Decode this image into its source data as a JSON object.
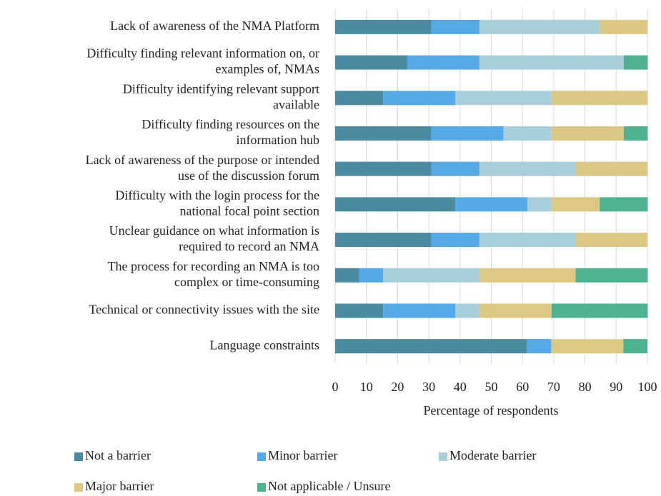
{
  "chart_data": {
    "type": "stacked-bar-horizontal",
    "categories": [
      [
        "Lack of awareness of the NMA Platform"
      ],
      [
        "Difficulty finding relevant information on, or",
        "examples of, NMAs"
      ],
      [
        "Difficulty identifying relevant support",
        "available"
      ],
      [
        "Difficulty finding resources on the",
        "information hub"
      ],
      [
        "Lack of awareness of the purpose or intended",
        "use of the discussion forum"
      ],
      [
        "Difficulty with the login process for the",
        "national focal point section"
      ],
      [
        "Unclear guidance on what information is",
        "required to record an NMA"
      ],
      [
        "The process for recording an NMA is too",
        "complex or time-consuming"
      ],
      [
        "Technical or connectivity issues with the site"
      ],
      [
        "Language constraints"
      ]
    ],
    "series": [
      {
        "name": "Not a barrier",
        "color": "#4b8ba1",
        "values": [
          30.8,
          23.1,
          15.4,
          30.8,
          30.8,
          38.5,
          30.8,
          7.7,
          15.4,
          61.5
        ]
      },
      {
        "name": "Minor barrier",
        "color": "#55a9e6",
        "values": [
          15.4,
          23.1,
          23.1,
          23.1,
          15.4,
          23.1,
          15.4,
          7.7,
          23.1,
          7.7
        ]
      },
      {
        "name": "Moderate barrier",
        "color": "#a8ced9",
        "values": [
          38.5,
          46.2,
          30.8,
          15.4,
          30.8,
          7.7,
          30.8,
          30.8,
          7.7,
          0
        ]
      },
      {
        "name": "Major barrier",
        "color": "#dcc885",
        "values": [
          15.4,
          0,
          30.8,
          23.1,
          23.1,
          15.4,
          23.1,
          30.8,
          23.1,
          23.1
        ]
      },
      {
        "name": "Not applicable / Unsure",
        "color": "#4db292",
        "values": [
          0,
          7.7,
          0,
          7.7,
          0,
          15.4,
          0,
          23.1,
          30.8,
          7.7
        ]
      }
    ],
    "xlabel": "Percentage of respondents",
    "xlim": [
      0,
      100
    ],
    "xticks": [
      0,
      10,
      20,
      30,
      40,
      50,
      60,
      70,
      80,
      90,
      100
    ],
    "grid": true
  }
}
